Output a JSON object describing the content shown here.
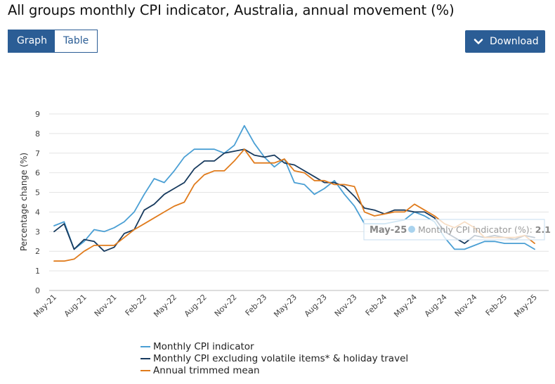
{
  "header": {
    "title": "All groups monthly CPI indicator, Australia, annual movement (%)"
  },
  "view_toggle": {
    "graph_label": "Graph",
    "table_label": "Table"
  },
  "download": {
    "label": "Download",
    "icon": "chevron-down-icon"
  },
  "tooltip": {
    "date": "May-25",
    "series": "Monthly CPI indicator (%)",
    "value": "2.1"
  },
  "chart_data": {
    "type": "line",
    "title": "All groups monthly CPI indicator, Australia, annual movement (%)",
    "xlabel": "",
    "ylabel": "Percentage change (%)",
    "ylim": [
      0,
      9
    ],
    "yticks": [
      0,
      1,
      2,
      3,
      4,
      5,
      6,
      7,
      8,
      9
    ],
    "grid": true,
    "x": [
      "May-21",
      "Jun-21",
      "Jul-21",
      "Aug-21",
      "Sep-21",
      "Oct-21",
      "Nov-21",
      "Dec-21",
      "Jan-22",
      "Feb-22",
      "Mar-22",
      "Apr-22",
      "May-22",
      "Jun-22",
      "Jul-22",
      "Aug-22",
      "Sep-22",
      "Oct-22",
      "Nov-22",
      "Dec-22",
      "Jan-23",
      "Feb-23",
      "Mar-23",
      "Apr-23",
      "May-23",
      "Jun-23",
      "Jul-23",
      "Aug-23",
      "Sep-23",
      "Oct-23",
      "Nov-23",
      "Dec-23",
      "Jan-24",
      "Feb-24",
      "Mar-24",
      "Apr-24",
      "May-24",
      "Jun-24",
      "Jul-24",
      "Aug-24",
      "Sep-24",
      "Oct-24",
      "Nov-24",
      "Dec-24",
      "Jan-25",
      "Feb-25",
      "Mar-25",
      "Apr-25",
      "May-25"
    ],
    "xtick_labels": [
      "May-21",
      "Aug-21",
      "Nov-21",
      "Feb-22",
      "May-22",
      "Aug-22",
      "Nov-22",
      "Feb-23",
      "May-23",
      "Aug-23",
      "Nov-23",
      "Feb-24",
      "May-24",
      "Aug-24",
      "Nov-24",
      "Feb-25",
      "May-25"
    ],
    "series": [
      {
        "name": "Monthly CPI indicator",
        "color": "#4a9fd4",
        "values": [
          3.3,
          3.5,
          2.1,
          2.5,
          3.1,
          3.0,
          3.2,
          3.5,
          4.0,
          4.9,
          5.7,
          5.5,
          6.1,
          6.8,
          7.2,
          7.2,
          7.2,
          7.0,
          7.4,
          8.4,
          7.5,
          6.8,
          6.3,
          6.7,
          5.5,
          5.4,
          4.9,
          5.2,
          5.6,
          4.9,
          4.3,
          3.4,
          3.4,
          3.4,
          3.5,
          3.6,
          4.0,
          3.8,
          3.5,
          2.7,
          2.1,
          2.1,
          2.3,
          2.5,
          2.5,
          2.4,
          2.4,
          2.4,
          2.1
        ]
      },
      {
        "name": "Monthly CPI excluding volatile items* & holiday travel",
        "color": "#173a5e",
        "values": [
          3.0,
          3.4,
          2.1,
          2.6,
          2.5,
          2.0,
          2.2,
          2.9,
          3.1,
          4.1,
          4.4,
          4.9,
          5.2,
          5.5,
          6.2,
          6.6,
          6.6,
          7.0,
          7.1,
          7.2,
          6.9,
          6.8,
          6.9,
          6.5,
          6.4,
          6.1,
          5.8,
          5.5,
          5.5,
          5.3,
          4.8,
          4.2,
          4.1,
          3.9,
          4.1,
          4.1,
          4.0,
          4.0,
          3.7,
          3.0,
          2.7,
          2.4,
          2.8,
          2.7,
          2.8,
          2.7,
          2.6,
          2.8,
          2.7
        ]
      },
      {
        "name": "Annual trimmed mean",
        "color": "#e07b1c",
        "values": [
          1.5,
          1.5,
          1.6,
          2.0,
          2.3,
          2.3,
          2.3,
          2.7,
          3.1,
          3.4,
          3.7,
          4.0,
          4.3,
          4.5,
          5.4,
          5.9,
          6.1,
          6.1,
          6.6,
          7.2,
          6.5,
          6.5,
          6.5,
          6.7,
          6.1,
          6.0,
          5.6,
          5.6,
          5.4,
          5.4,
          5.3,
          4.0,
          3.8,
          3.9,
          4.0,
          4.0,
          4.4,
          4.1,
          3.8,
          3.4,
          3.2,
          3.5,
          3.2,
          2.7,
          2.7,
          2.7,
          2.7,
          2.8,
          2.4
        ]
      }
    ]
  }
}
